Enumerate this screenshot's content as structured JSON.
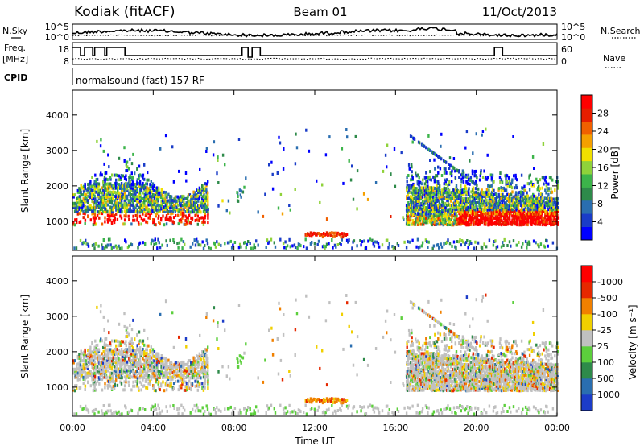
{
  "header": {
    "station": "Kodiak (fitACF)",
    "beam": "Beam 01",
    "date": "11/Oct/2013"
  },
  "side_labels": {
    "nsky": "N.Sky",
    "freq": "Freq.",
    "freq_unit": "[MHz]",
    "cpid": "CPID",
    "nsearch": "N.Search",
    "nave": "Nave"
  },
  "cpid_text": "normalsound (fast) 157 RF",
  "noise_axis": {
    "left_ticks": [
      "10^5",
      "10^0"
    ],
    "right_ticks": [
      "10^5",
      "10^0"
    ]
  },
  "freq_axis": {
    "left_ticks": [
      "18",
      "8"
    ],
    "right_ticks": [
      "60",
      "0"
    ]
  },
  "chart_data": [
    {
      "type": "heatmap",
      "title": "Power",
      "ylabel": "Slant Range [km]",
      "xlabel": "",
      "x_ticks": [
        "00:00",
        "04:00",
        "08:00",
        "12:00",
        "16:00",
        "20:00",
        "00:00"
      ],
      "y_ticks": [
        1000,
        2000,
        3000,
        4000
      ],
      "ylim": [
        180,
        4700
      ],
      "xlim_hours": [
        0,
        24
      ],
      "colorbar": {
        "label": "Power [dB]",
        "ticks": [
          "4",
          "8",
          "12",
          "16",
          "20",
          "24",
          "28"
        ],
        "colors": [
          "#0000ff",
          "#1a3cc8",
          "#2a6eb0",
          "#2e8a4a",
          "#3cb44a",
          "#8fd23a",
          "#f0e000",
          "#f5a000",
          "#f06000",
          "#e61e00",
          "#ff0000"
        ]
      },
      "regions": [
        {
          "name": "early-scatter",
          "t": [
            0.0,
            6.7
          ],
          "r": [
            800,
            2600
          ],
          "value": "mixed"
        },
        {
          "name": "late-scatter",
          "t": [
            16.5,
            24.0
          ],
          "r": [
            800,
            2200
          ],
          "value": "mixed"
        },
        {
          "name": "near-range-echoes",
          "t": [
            0.0,
            24.0
          ],
          "r": [
            200,
            600
          ],
          "value": "low"
        },
        {
          "name": "noon-echo",
          "t": [
            11.5,
            13.5
          ],
          "r": [
            520,
            680
          ],
          "value": "high"
        }
      ]
    },
    {
      "type": "heatmap",
      "title": "Velocity",
      "ylabel": "Slant Range [km]",
      "xlabel": "Time UT",
      "x_ticks": [
        "00:00",
        "04:00",
        "08:00",
        "12:00",
        "16:00",
        "20:00",
        "00:00"
      ],
      "y_ticks": [
        1000,
        2000,
        3000,
        4000
      ],
      "ylim": [
        180,
        4700
      ],
      "xlim_hours": [
        0,
        24
      ],
      "colorbar": {
        "label": "Velocity [m s⁻¹]",
        "ticks": [
          "1000",
          "500",
          "100",
          "25",
          "-25",
          "-100",
          "-500",
          "-1000"
        ],
        "colors": [
          "#1c3cc8",
          "#2a6eb0",
          "#2e8a4a",
          "#5ccf3c",
          "#c0c0c0",
          "#f0d000",
          "#f08000",
          "#e62800",
          "#ff0000"
        ]
      }
    }
  ]
}
